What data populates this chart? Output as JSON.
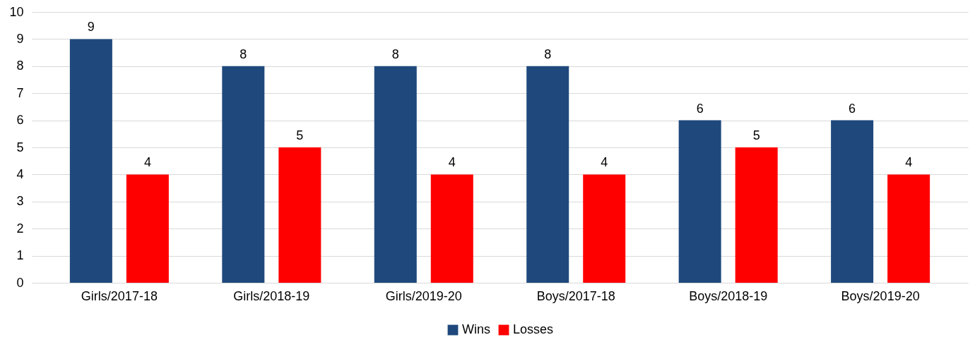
{
  "chart_data": {
    "type": "bar",
    "categories": [
      "Girls/2017-18",
      "Girls/2018-19",
      "Girls/2019-20",
      "Boys/2017-18",
      "Boys/2018-19",
      "Boys/2019-20"
    ],
    "series": [
      {
        "name": "Wins",
        "color": "#1f497d",
        "values": [
          9,
          8,
          8,
          8,
          6,
          6
        ]
      },
      {
        "name": "Losses",
        "color": "#ff0000",
        "values": [
          4,
          5,
          4,
          4,
          5,
          4
        ]
      }
    ],
    "ylim": [
      0,
      10
    ],
    "yticks": [
      0,
      1,
      2,
      3,
      4,
      5,
      6,
      7,
      8,
      9,
      10
    ],
    "grid": "y",
    "legend": "bottom",
    "data_labels": true
  }
}
